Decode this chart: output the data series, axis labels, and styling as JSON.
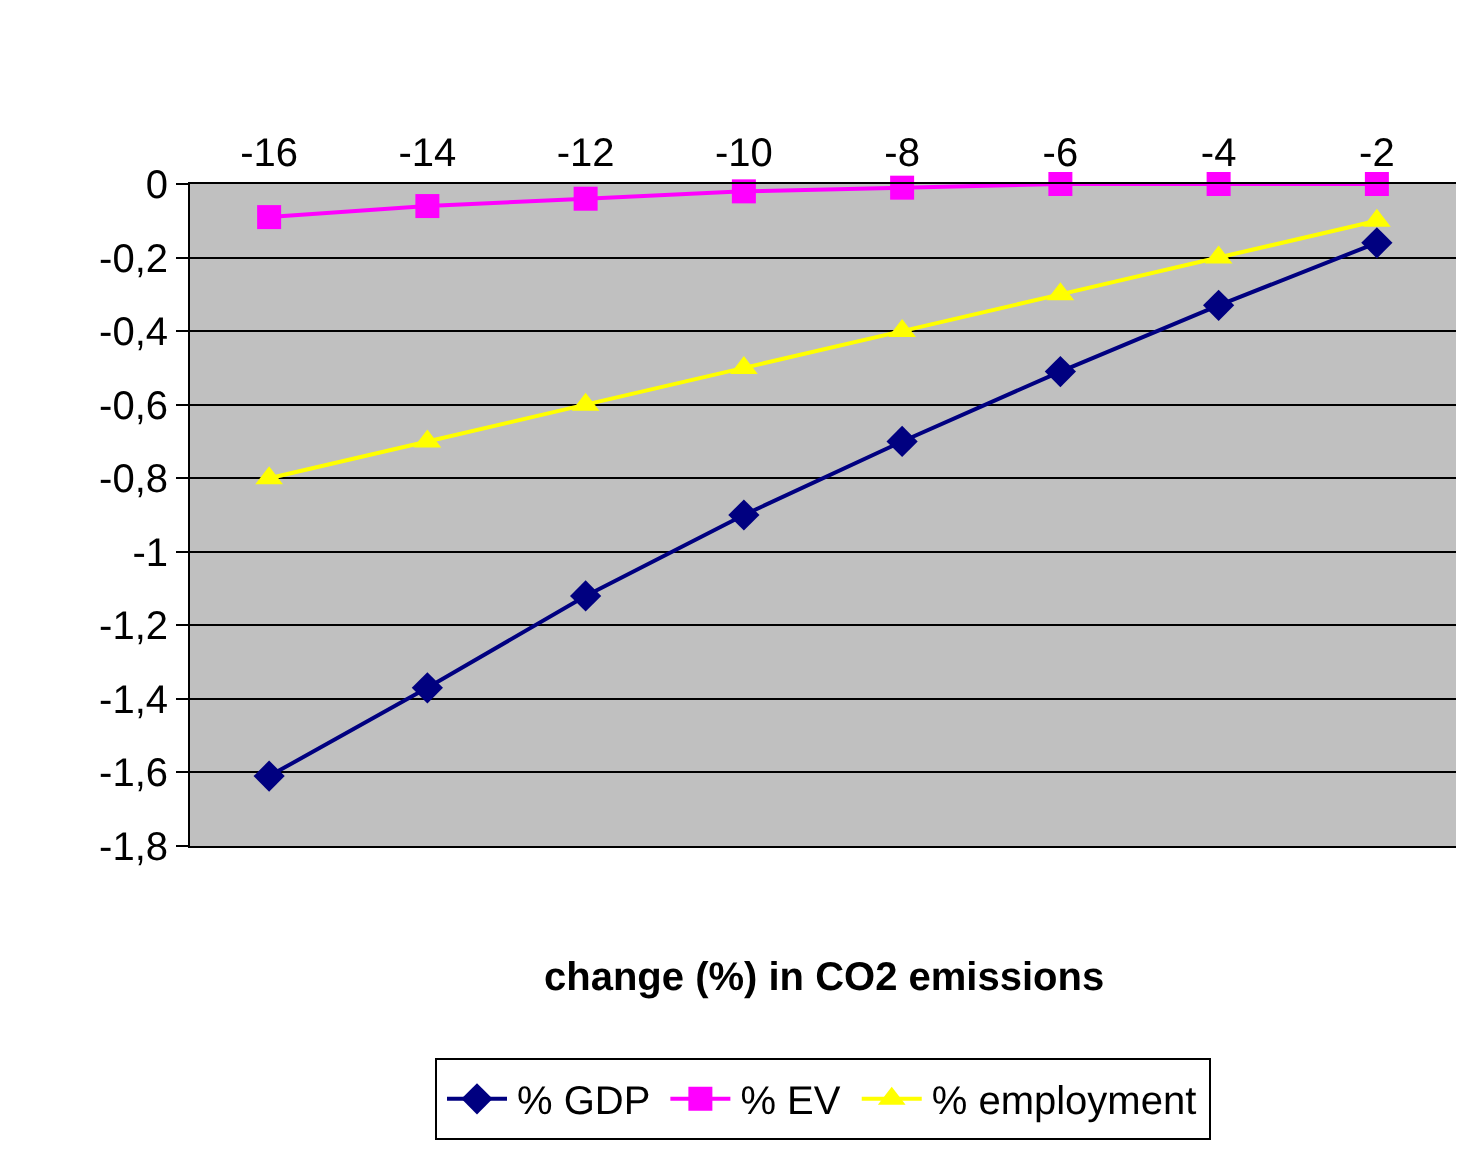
{
  "chart_data": {
    "type": "line",
    "xlabel": "change (%) in CO2 emissions",
    "categories": [
      "-16",
      "-14",
      "-12",
      "-10",
      "-8",
      "-6",
      "-4",
      "-2"
    ],
    "series": [
      {
        "name": "% GDP",
        "color": "#000080",
        "marker": "diamond",
        "values": [
          -1.61,
          -1.37,
          -1.12,
          -0.9,
          -0.7,
          -0.51,
          -0.33,
          -0.16
        ]
      },
      {
        "name": "% EV",
        "color": "#ff00ff",
        "marker": "square",
        "values": [
          -0.09,
          -0.06,
          -0.04,
          -0.02,
          -0.01,
          0,
          0,
          0
        ]
      },
      {
        "name": "% employment",
        "color": "#ffff00",
        "marker": "triangle",
        "values": [
          -0.8,
          -0.7,
          -0.6,
          -0.5,
          -0.4,
          -0.3,
          -0.2,
          -0.1
        ]
      }
    ],
    "ylim": [
      -1.8,
      0
    ],
    "yticks": [
      0,
      {
        "value": -0.2,
        "label": "-0,2"
      },
      {
        "value": -0.4,
        "label": "-0,4"
      },
      {
        "value": -0.6,
        "label": "-0,6"
      },
      {
        "value": -0.8,
        "label": "-0,8"
      },
      -1,
      {
        "value": -1.2,
        "label": "-1,2"
      },
      {
        "value": -1.4,
        "label": "-1,4"
      },
      {
        "value": -1.6,
        "label": "-1,6"
      },
      {
        "value": -1.8,
        "label": "-1,8"
      }
    ],
    "grid": "y",
    "legend": "bottom",
    "line_style": "solid"
  }
}
